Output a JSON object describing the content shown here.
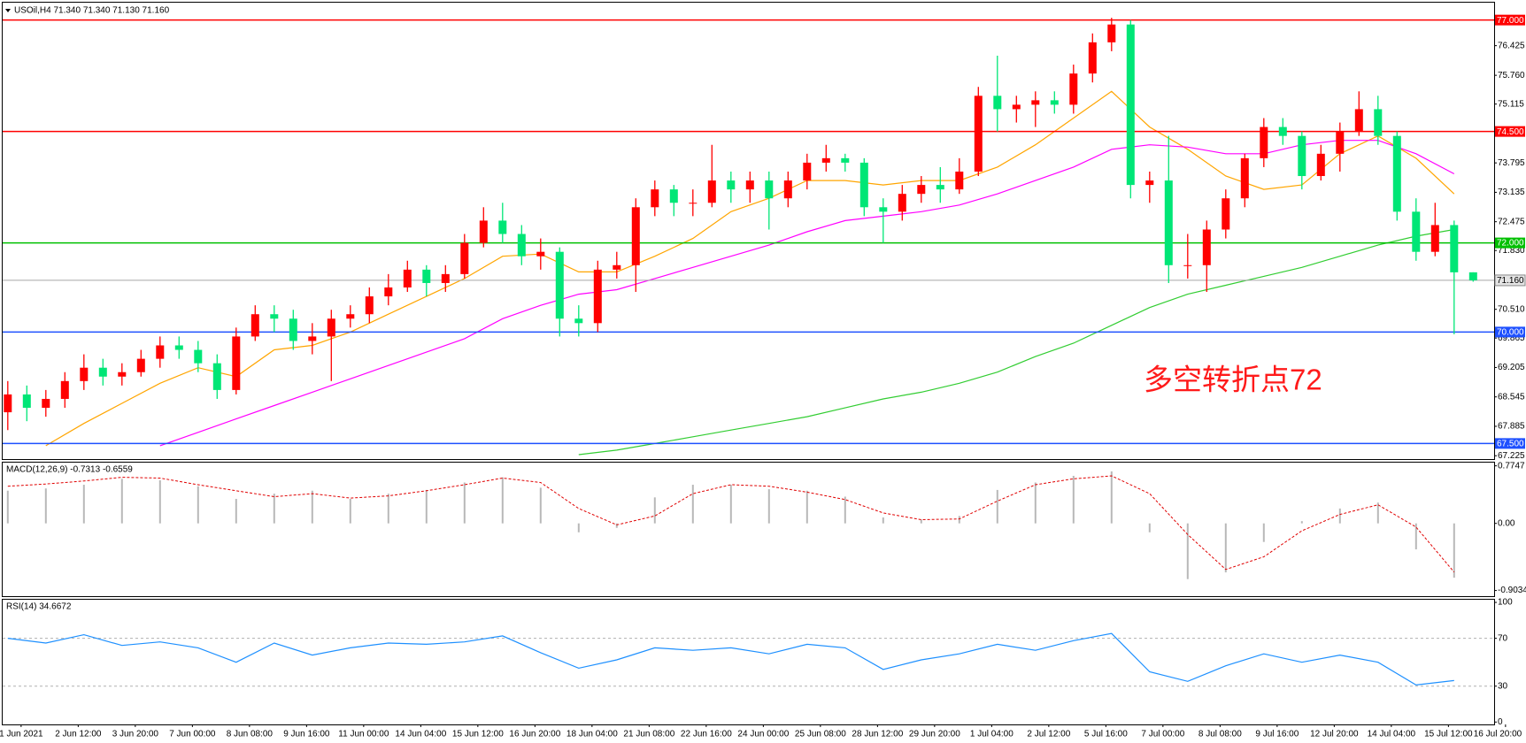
{
  "chart_data": [
    {
      "type": "candlestick",
      "title": "USOil,H4 71.340 71.340 71.130 71.160",
      "open": [
        68.2,
        68.6,
        68.3,
        68.5,
        68.9,
        69.2,
        69.0,
        69.1,
        69.4,
        69.7,
        69.6,
        69.3,
        68.7,
        69.9,
        70.4,
        70.3,
        69.8,
        69.9,
        70.3,
        70.4,
        70.8,
        71.0,
        71.4,
        71.1,
        71.3,
        72.0,
        72.5,
        72.2,
        71.7,
        71.8,
        70.3,
        70.2,
        71.4,
        71.5,
        72.8,
        73.2,
        72.9,
        72.9,
        73.4,
        73.2,
        73.4,
        73.0,
        73.4,
        73.8,
        73.9,
        73.8,
        72.8,
        72.7,
        73.1,
        73.3,
        73.2,
        73.6,
        75.3,
        75.0,
        75.1,
        75.2,
        75.1,
        75.8,
        76.5,
        76.9,
        73.3,
        73.4,
        71.5,
        71.5,
        72.3,
        73.0,
        73.9,
        74.6,
        74.4,
        73.5,
        74.0,
        74.5,
        75.0,
        74.4,
        72.7,
        71.8,
        72.4,
        71.34
      ],
      "high": [
        68.9,
        68.8,
        68.7,
        69.1,
        69.5,
        69.4,
        69.3,
        69.6,
        69.9,
        69.9,
        69.8,
        69.5,
        70.1,
        70.6,
        70.6,
        70.5,
        70.2,
        70.5,
        70.6,
        71.0,
        71.3,
        71.6,
        71.5,
        71.5,
        72.2,
        72.8,
        72.9,
        72.4,
        72.1,
        71.9,
        70.6,
        71.6,
        71.8,
        73.0,
        73.4,
        73.3,
        73.2,
        74.2,
        73.6,
        73.6,
        73.6,
        73.6,
        74.0,
        74.2,
        74.0,
        73.9,
        73.0,
        73.3,
        73.5,
        73.7,
        73.9,
        75.5,
        76.2,
        75.3,
        75.4,
        75.4,
        76.0,
        76.7,
        77.05,
        77.0,
        73.6,
        74.4,
        72.2,
        72.5,
        73.2,
        74.0,
        74.8,
        74.8,
        74.5,
        74.2,
        74.7,
        75.4,
        75.3,
        74.5,
        73.0,
        72.9,
        72.5,
        71.34
      ],
      "low": [
        67.8,
        68.0,
        68.1,
        68.3,
        68.7,
        68.8,
        68.8,
        69.0,
        69.2,
        69.4,
        69.1,
        68.5,
        68.6,
        69.8,
        70.0,
        69.6,
        69.5,
        68.9,
        70.1,
        70.2,
        70.6,
        70.9,
        70.8,
        70.9,
        71.2,
        71.9,
        72.0,
        71.5,
        71.4,
        69.9,
        69.9,
        70.0,
        71.2,
        70.9,
        72.6,
        72.6,
        72.6,
        72.8,
        72.9,
        72.9,
        72.3,
        72.8,
        73.2,
        73.6,
        73.6,
        72.6,
        72.0,
        72.5,
        72.9,
        72.9,
        73.1,
        73.5,
        74.5,
        74.7,
        74.6,
        74.9,
        74.9,
        75.6,
        76.3,
        73.0,
        72.9,
        71.1,
        71.2,
        70.9,
        72.1,
        72.8,
        73.7,
        74.2,
        73.2,
        73.4,
        73.6,
        74.4,
        74.2,
        72.5,
        71.6,
        71.7,
        69.95,
        71.13
      ],
      "close": [
        68.6,
        68.3,
        68.5,
        68.9,
        69.2,
        69.0,
        69.1,
        69.4,
        69.7,
        69.6,
        69.3,
        68.7,
        69.9,
        70.4,
        70.3,
        69.8,
        69.9,
        70.3,
        70.4,
        70.8,
        71.0,
        71.4,
        71.1,
        71.3,
        72.0,
        72.5,
        72.2,
        71.7,
        71.8,
        70.3,
        70.2,
        71.4,
        71.5,
        72.8,
        73.2,
        72.9,
        72.9,
        73.4,
        73.2,
        73.4,
        73.0,
        73.4,
        73.8,
        73.9,
        73.8,
        72.8,
        72.7,
        73.1,
        73.3,
        73.2,
        73.6,
        75.3,
        75.0,
        75.1,
        75.2,
        75.1,
        75.8,
        76.5,
        76.9,
        73.3,
        73.4,
        71.5,
        71.5,
        72.3,
        73.0,
        73.9,
        74.6,
        74.4,
        73.5,
        74.0,
        74.5,
        75.0,
        74.4,
        72.7,
        71.8,
        72.4,
        71.34,
        71.16
      ],
      "up_color": "#ff0000",
      "down_color": "#00e676",
      "ylim": [
        67.15,
        77.39
      ],
      "yticks": [
        {
          "value": 76.425,
          "label": "76.425"
        },
        {
          "value": 75.76,
          "label": "75.760"
        },
        {
          "value": 75.115,
          "label": "75.115"
        },
        {
          "value": 73.795,
          "label": "73.795"
        },
        {
          "value": 73.135,
          "label": "73.135"
        },
        {
          "value": 72.475,
          "label": "72.475"
        },
        {
          "value": 71.83,
          "label": "71.830"
        },
        {
          "value": 70.51,
          "label": "70.510"
        },
        {
          "value": 69.865,
          "label": "69.865"
        },
        {
          "value": 69.205,
          "label": "69.205"
        },
        {
          "value": 68.545,
          "label": "68.545"
        },
        {
          "value": 67.885,
          "label": "67.885"
        },
        {
          "value": 67.225,
          "label": "67.225"
        }
      ],
      "ma_x": [
        0,
        2,
        4,
        6,
        8,
        10,
        12,
        14,
        16,
        18,
        20,
        22,
        24,
        26,
        28,
        30,
        32,
        34,
        36,
        38,
        40,
        42,
        44,
        46,
        48,
        50,
        52,
        54,
        56,
        58,
        60,
        62,
        64,
        66,
        68,
        70,
        72,
        74,
        76
      ],
      "series": [
        {
          "color": "#ffa500",
          "values": [
            null,
            67.45,
            67.95,
            68.4,
            68.85,
            69.2,
            69.0,
            69.6,
            69.7,
            70.0,
            70.4,
            70.8,
            71.2,
            71.7,
            71.75,
            71.35,
            71.35,
            71.7,
            72.1,
            72.7,
            73.0,
            73.4,
            73.4,
            73.3,
            73.4,
            73.4,
            73.7,
            74.2,
            74.8,
            75.4,
            74.6,
            74.1,
            73.5,
            73.2,
            73.3,
            74.0,
            74.4,
            73.9,
            73.1
          ]
        },
        {
          "color": "#ff00ff",
          "values": [
            null,
            null,
            null,
            null,
            67.45,
            67.75,
            68.05,
            68.35,
            68.65,
            68.95,
            69.25,
            69.55,
            69.85,
            70.3,
            70.6,
            70.85,
            70.95,
            71.2,
            71.45,
            71.7,
            71.95,
            72.25,
            72.5,
            72.6,
            72.7,
            72.85,
            73.1,
            73.4,
            73.7,
            74.1,
            74.2,
            74.15,
            74.0,
            74.0,
            74.2,
            74.3,
            74.3,
            74.0,
            73.55
          ]
        },
        {
          "color": "#32cd32",
          "values": [
            null,
            null,
            null,
            null,
            null,
            null,
            null,
            null,
            null,
            null,
            null,
            null,
            null,
            null,
            null,
            67.25,
            67.35,
            67.5,
            67.65,
            67.8,
            67.95,
            68.1,
            68.3,
            68.5,
            68.65,
            68.85,
            69.1,
            69.45,
            69.75,
            70.15,
            70.55,
            70.85,
            71.05,
            71.25,
            71.45,
            71.7,
            71.95,
            72.15,
            72.3
          ]
        }
      ],
      "levels": [
        {
          "value": 77,
          "label": "77.000",
          "color": "#ff0000"
        },
        {
          "value": 74.5,
          "label": "74.500",
          "color": "#ff0000"
        },
        {
          "value": 72,
          "label": "72.000",
          "color": "#00c000"
        },
        {
          "value": 70,
          "label": "70.000",
          "color": "#1e50ff"
        },
        {
          "value": 67.5,
          "label": "67.500",
          "color": "#1e50ff"
        }
      ],
      "last": {
        "value": 71.16,
        "label": "71.160"
      },
      "annotation": {
        "text": "多空转折点72",
        "color": "#ff1a1a"
      }
    },
    {
      "type": "macd",
      "title": "MACD(12,26,9) -0.7313 -0.6559",
      "x": [
        0,
        2,
        4,
        6,
        8,
        10,
        12,
        14,
        16,
        18,
        20,
        22,
        24,
        26,
        28,
        30,
        32,
        34,
        36,
        38,
        40,
        42,
        44,
        46,
        48,
        50,
        52,
        54,
        56,
        58,
        60,
        62,
        64,
        66,
        68,
        70,
        72,
        74,
        76
      ],
      "histogram": {
        "color": "#b8b8b8",
        "values": [
          0.44,
          0.47,
          0.52,
          0.6,
          0.58,
          0.5,
          0.33,
          0.4,
          0.44,
          0.33,
          0.4,
          0.45,
          0.55,
          0.62,
          0.48,
          -0.12,
          -0.06,
          0.35,
          0.52,
          0.52,
          0.46,
          0.44,
          0.36,
          0.08,
          0.05,
          0.1,
          0.45,
          0.55,
          0.64,
          0.7,
          -0.12,
          -0.75,
          -0.66,
          -0.25,
          0.03,
          0.2,
          0.28,
          -0.35,
          -0.7313
        ]
      },
      "signal": {
        "color": "#e00000",
        "values": [
          0.5,
          0.53,
          0.57,
          0.62,
          0.61,
          0.52,
          0.44,
          0.36,
          0.4,
          0.34,
          0.37,
          0.44,
          0.52,
          0.61,
          0.55,
          0.2,
          -0.02,
          0.1,
          0.4,
          0.52,
          0.5,
          0.42,
          0.32,
          0.14,
          0.05,
          0.06,
          0.3,
          0.52,
          0.6,
          0.64,
          0.4,
          -0.15,
          -0.62,
          -0.45,
          -0.1,
          0.12,
          0.25,
          -0.05,
          -0.6559
        ]
      },
      "ylim": [
        -0.98,
        0.83
      ],
      "yticks": [
        0.7747,
        {
          "value": 0,
          "label": "0.00"
        },
        -0.9034
      ]
    },
    {
      "type": "line",
      "title": "RSI(14) 34.6672",
      "x": [
        0,
        2,
        4,
        6,
        8,
        10,
        12,
        14,
        16,
        18,
        20,
        22,
        24,
        26,
        28,
        30,
        32,
        34,
        36,
        38,
        40,
        42,
        44,
        46,
        48,
        50,
        52,
        54,
        56,
        58,
        60,
        62,
        64,
        66,
        68,
        70,
        72,
        74,
        76
      ],
      "series": [
        {
          "color": "#1e90ff",
          "values": [
            70,
            66,
            73,
            64,
            67,
            62,
            50,
            66,
            56,
            62,
            66,
            65,
            67,
            72,
            58,
            45,
            52,
            62,
            60,
            62,
            57,
            65,
            62,
            44,
            52,
            57,
            65,
            60,
            68,
            74,
            42,
            34,
            47,
            57,
            50,
            56,
            50,
            31,
            34.6672
          ]
        }
      ],
      "ylim": [
        -2,
        103
      ],
      "yticks": [
        100,
        70,
        30,
        0
      ],
      "dashed_levels": [
        70,
        30
      ],
      "x_labels": [
        "1 Jun 2021",
        "2 Jun 12:00",
        "3 Jun 20:00",
        "7 Jun 00:00",
        "8 Jun 08:00",
        "9 Jun 16:00",
        "11 Jun 00:00",
        "14 Jun 04:00",
        "15 Jun 12:00",
        "16 Jun 20:00",
        "18 Jun 04:00",
        "21 Jun 08:00",
        "22 Jun 16:00",
        "24 Jun 00:00",
        "25 Jun 08:00",
        "28 Jun 12:00",
        "29 Jun 20:00",
        "1 Jul 04:00",
        "2 Jul 12:00",
        "5 Jul 16:00",
        "7 Jul 00:00",
        "8 Jul 08:00",
        "9 Jul 16:00",
        "12 Jul 20:00",
        "14 Jul 04:00",
        "15 Jul 12:00",
        "16 Jul 20:00"
      ]
    }
  ]
}
